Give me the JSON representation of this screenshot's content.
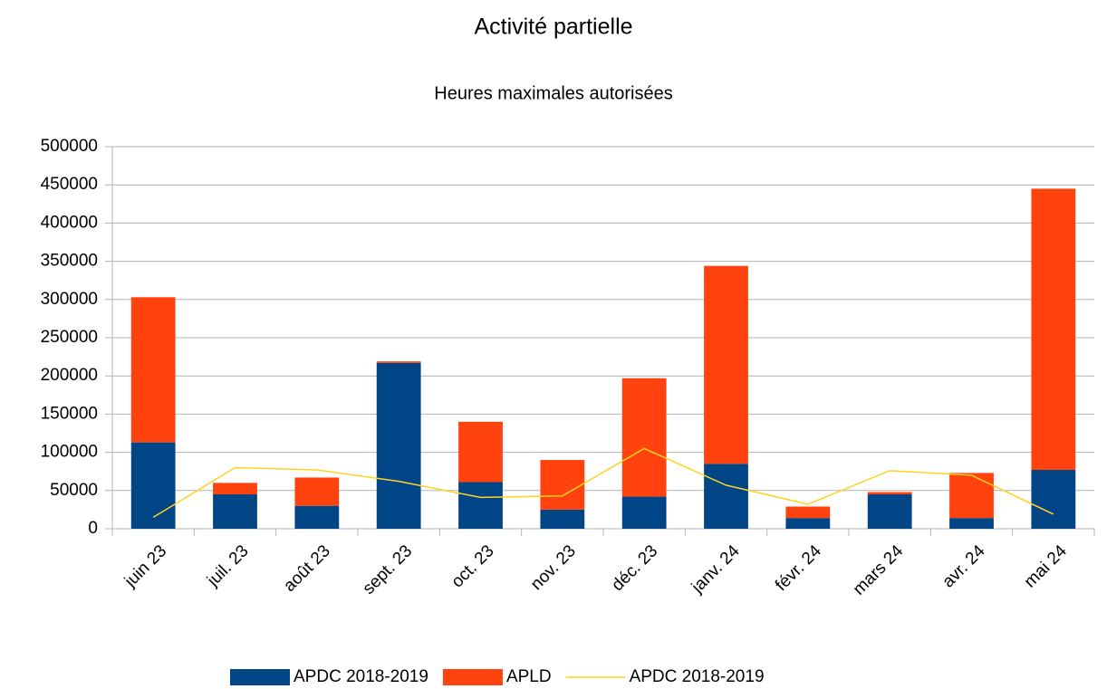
{
  "chart_data": {
    "type": "bar",
    "stacked": true,
    "title": "Activité partielle",
    "subtitle": "Heures maximales autorisées",
    "categories": [
      "juin 23",
      "juil. 23",
      "août 23",
      "sept. 23",
      "oct. 23",
      "nov. 23",
      "déc. 23",
      "janv. 24",
      "févr. 24",
      "mars 24",
      "avr. 24",
      "mai 24"
    ],
    "series": [
      {
        "name": "APDC 2018-2019",
        "color": "#004586",
        "type": "bar",
        "values": [
          113000,
          45000,
          30000,
          217000,
          61000,
          25000,
          42000,
          85000,
          14000,
          45000,
          14000,
          77000
        ]
      },
      {
        "name": "APLD",
        "color": "#ff420e",
        "type": "bar",
        "values": [
          190000,
          15000,
          37000,
          2000,
          79000,
          65000,
          155000,
          259000,
          15000,
          3000,
          59000,
          368000
        ]
      },
      {
        "name": "APDC 2018-2019",
        "color": "#ffd320",
        "type": "line",
        "values": [
          15000,
          80000,
          77000,
          62000,
          41000,
          43000,
          105000,
          57000,
          32000,
          76000,
          70000,
          19000
        ]
      }
    ],
    "ylim": [
      0,
      500000
    ],
    "yticks": [
      0,
      50000,
      100000,
      150000,
      200000,
      250000,
      300000,
      350000,
      400000,
      450000,
      500000
    ],
    "grid": true,
    "legend": "bottom"
  }
}
